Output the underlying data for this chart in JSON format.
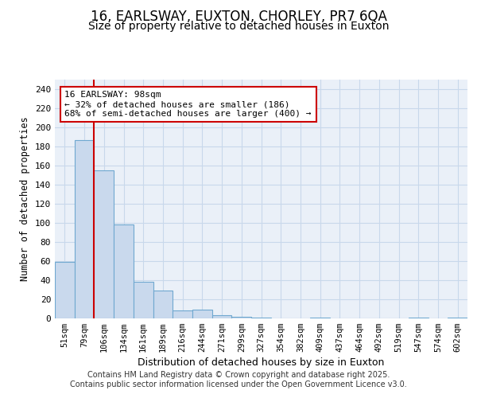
{
  "title": "16, EARLSWAY, EUXTON, CHORLEY, PR7 6QA",
  "subtitle": "Size of property relative to detached houses in Euxton",
  "xlabel": "Distribution of detached houses by size in Euxton",
  "ylabel": "Number of detached properties",
  "categories": [
    "51sqm",
    "79sqm",
    "106sqm",
    "134sqm",
    "161sqm",
    "189sqm",
    "216sqm",
    "244sqm",
    "271sqm",
    "299sqm",
    "327sqm",
    "354sqm",
    "382sqm",
    "409sqm",
    "437sqm",
    "464sqm",
    "492sqm",
    "519sqm",
    "547sqm",
    "574sqm",
    "602sqm"
  ],
  "values": [
    59,
    187,
    155,
    98,
    38,
    29,
    8,
    9,
    3,
    2,
    1,
    0,
    0,
    1,
    0,
    0,
    0,
    0,
    1,
    0,
    1
  ],
  "bar_color": "#c9d9ed",
  "bar_edge_color": "#6fa8d0",
  "grid_color": "#c8d8eb",
  "background_color": "#eaf0f8",
  "vline_color": "#cc0000",
  "annotation_line1": "16 EARLSWAY: 98sqm",
  "annotation_line2": "← 32% of detached houses are smaller (186)",
  "annotation_line3": "68% of semi-detached houses are larger (400) →",
  "annotation_box_color": "#cc0000",
  "ylim": [
    0,
    250
  ],
  "yticks": [
    0,
    20,
    40,
    60,
    80,
    100,
    120,
    140,
    160,
    180,
    200,
    220,
    240
  ],
  "footer_text": "Contains HM Land Registry data © Crown copyright and database right 2025.\nContains public sector information licensed under the Open Government Licence v3.0.",
  "title_fontsize": 12,
  "subtitle_fontsize": 10,
  "vline_x_index": 1.5
}
